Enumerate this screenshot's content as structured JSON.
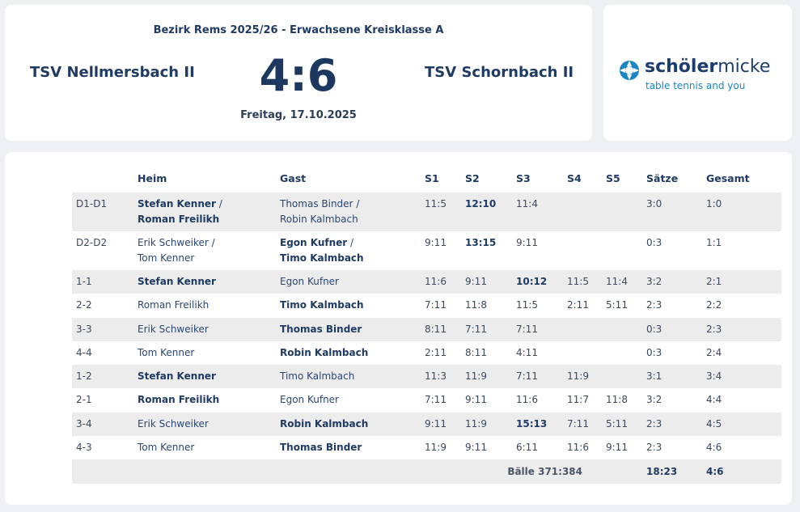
{
  "header": {
    "league": "Bezirk Rems 2025/26 - Erwachsene Kreisklasse A",
    "home_team": "TSV Nellmersbach II",
    "score": "4:6",
    "away_team": "TSV Schornbach II",
    "date": "Freitag, 17.10.2025"
  },
  "logo": {
    "brand_1": "schöler",
    "brand_2": "micke",
    "tagline": "table tennis and you"
  },
  "table": {
    "columns": [
      "Heim",
      "Gast",
      "S1",
      "S2",
      "S3",
      "S4",
      "S5",
      "Sätze",
      "Gesamt"
    ],
    "doubles_separator": "/",
    "rows": [
      {
        "pair": "D1-D1",
        "home": [
          "Stefan Kenner",
          "Roman Freilikh"
        ],
        "away": [
          "Thomas Binder",
          "Robin Kalmbach"
        ],
        "winner": "home",
        "sets": [
          "11:5",
          "12:10",
          "11:4",
          null,
          null
        ],
        "highlight_set": 1,
        "saetze": "3:0",
        "gesamt": "1:0"
      },
      {
        "pair": "D2-D2",
        "home": [
          "Erik Schweiker",
          "Tom Kenner"
        ],
        "away": [
          "Egon Kufner",
          "Timo Kalmbach"
        ],
        "winner": "away",
        "sets": [
          "9:11",
          "13:15",
          "9:11",
          null,
          null
        ],
        "highlight_set": 1,
        "saetze": "0:3",
        "gesamt": "1:1"
      },
      {
        "pair": "1-1",
        "home": [
          "Stefan Kenner"
        ],
        "away": [
          "Egon Kufner"
        ],
        "winner": "home",
        "sets": [
          "11:6",
          "9:11",
          "10:12",
          "11:5",
          "11:4"
        ],
        "highlight_set": 2,
        "saetze": "3:2",
        "gesamt": "2:1"
      },
      {
        "pair": "2-2",
        "home": [
          "Roman Freilikh"
        ],
        "away": [
          "Timo Kalmbach"
        ],
        "winner": "away",
        "sets": [
          "7:11",
          "11:8",
          "11:5",
          "2:11",
          "5:11"
        ],
        "highlight_set": null,
        "saetze": "2:3",
        "gesamt": "2:2"
      },
      {
        "pair": "3-3",
        "home": [
          "Erik Schweiker"
        ],
        "away": [
          "Thomas Binder"
        ],
        "winner": "away",
        "sets": [
          "8:11",
          "7:11",
          "7:11",
          null,
          null
        ],
        "highlight_set": null,
        "saetze": "0:3",
        "gesamt": "2:3"
      },
      {
        "pair": "4-4",
        "home": [
          "Tom Kenner"
        ],
        "away": [
          "Robin Kalmbach"
        ],
        "winner": "away",
        "sets": [
          "2:11",
          "8:11",
          "4:11",
          null,
          null
        ],
        "highlight_set": null,
        "saetze": "0:3",
        "gesamt": "2:4"
      },
      {
        "pair": "1-2",
        "home": [
          "Stefan Kenner"
        ],
        "away": [
          "Timo Kalmbach"
        ],
        "winner": "home",
        "sets": [
          "11:3",
          "11:9",
          "7:11",
          "11:9",
          null
        ],
        "highlight_set": null,
        "saetze": "3:1",
        "gesamt": "3:4"
      },
      {
        "pair": "2-1",
        "home": [
          "Roman Freilikh"
        ],
        "away": [
          "Egon Kufner"
        ],
        "winner": "home",
        "sets": [
          "7:11",
          "9:11",
          "11:6",
          "11:7",
          "11:8"
        ],
        "highlight_set": null,
        "saetze": "3:2",
        "gesamt": "4:4"
      },
      {
        "pair": "3-4",
        "home": [
          "Erik Schweiker"
        ],
        "away": [
          "Robin Kalmbach"
        ],
        "winner": "away",
        "sets": [
          "9:11",
          "11:9",
          "15:13",
          "7:11",
          "5:11"
        ],
        "highlight_set": 2,
        "saetze": "2:3",
        "gesamt": "4:5"
      },
      {
        "pair": "4-3",
        "home": [
          "Tom Kenner"
        ],
        "away": [
          "Thomas Binder"
        ],
        "winner": "away",
        "sets": [
          "11:9",
          "9:11",
          "6:11",
          "11:6",
          "9:11"
        ],
        "highlight_set": null,
        "saetze": "2:3",
        "gesamt": "4:6"
      }
    ],
    "footer": {
      "balls": "Bälle 371:384",
      "saetze": "18:23",
      "gesamt": "4:6"
    }
  }
}
